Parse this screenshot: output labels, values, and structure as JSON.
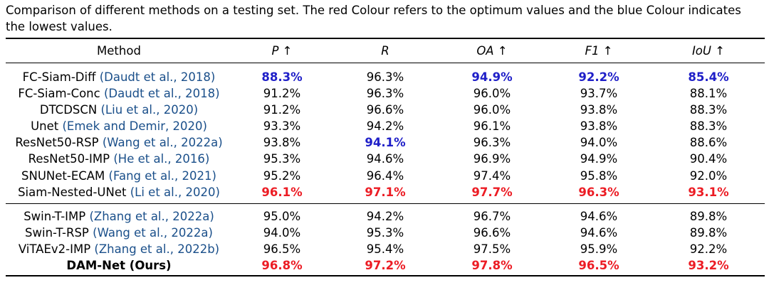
{
  "caption": "Comparison of different methods on a testing set. The red Colour refers to the optimum values and the blue Colour indicates the lowest values.",
  "headers": [
    "Method",
    "P ↑",
    "R",
    "OA ↑",
    "F1 ↑",
    "IoU ↑"
  ],
  "colors": {
    "optimum": "#ec1c24",
    "lowest": "#1f1fc8",
    "citation": "#1a4f8a"
  },
  "group1": [
    {
      "name": "FC-Siam-Diff",
      "cite": "(Daudt et al., 2018)",
      "P": "88.3%",
      "R": "96.3%",
      "OA": "94.9%",
      "F1": "92.2%",
      "IoU": "85.4%"
    },
    {
      "name": "FC-Siam-Conc",
      "cite": "(Daudt et al., 2018)",
      "P": "91.2%",
      "R": "96.3%",
      "OA": "96.0%",
      "F1": "93.7%",
      "IoU": "88.1%"
    },
    {
      "name": "DTCDSCN",
      "cite": "(Liu et al., 2020)",
      "P": "91.2%",
      "R": "96.6%",
      "OA": "96.0%",
      "F1": "93.8%",
      "IoU": "88.3%"
    },
    {
      "name": "Unet",
      "cite": "(Emek and Demir, 2020)",
      "P": "93.3%",
      "R": "94.2%",
      "OA": "96.1%",
      "F1": "93.8%",
      "IoU": "88.3%"
    },
    {
      "name": "ResNet50-RSP",
      "cite": "(Wang et al., 2022a)",
      "P": "93.8%",
      "R": "94.1%",
      "OA": "96.3%",
      "F1": "94.0%",
      "IoU": "88.6%"
    },
    {
      "name": "ResNet50-IMP",
      "cite": "(He et al., 2016)",
      "P": "95.3%",
      "R": "94.6%",
      "OA": "96.9%",
      "F1": "94.9%",
      "IoU": "90.4%"
    },
    {
      "name": "SNUNet-ECAM",
      "cite": "(Fang et al., 2021)",
      "P": "95.2%",
      "R": "96.4%",
      "OA": "97.4%",
      "F1": "95.8%",
      "IoU": "92.0%"
    },
    {
      "name": "Siam-Nested-UNet",
      "cite": "(Li et al., 2020)",
      "P": "96.1%",
      "R": "97.1%",
      "OA": "97.7%",
      "F1": "96.3%",
      "IoU": "93.1%"
    }
  ],
  "group2": [
    {
      "name": "Swin-T-IMP",
      "cite": "(Zhang et al., 2022a)",
      "P": "95.0%",
      "R": "94.2%",
      "OA": "96.7%",
      "F1": "94.6%",
      "IoU": "89.8%"
    },
    {
      "name": "Swin-T-RSP",
      "cite": "(Wang et al., 2022a)",
      "P": "94.0%",
      "R": "95.3%",
      "OA": "96.6%",
      "F1": "94.6%",
      "IoU": "89.8%"
    },
    {
      "name": "ViTAEv2-IMP",
      "cite": "(Zhang et al., 2022b)",
      "P": "96.5%",
      "R": "95.4%",
      "OA": "97.5%",
      "F1": "95.9%",
      "IoU": "92.2%"
    },
    {
      "name": "DAM-Net (Ours)",
      "cite": "",
      "P": "96.8%",
      "R": "97.2%",
      "OA": "97.8%",
      "F1": "96.5%",
      "IoU": "93.2%"
    }
  ]
}
